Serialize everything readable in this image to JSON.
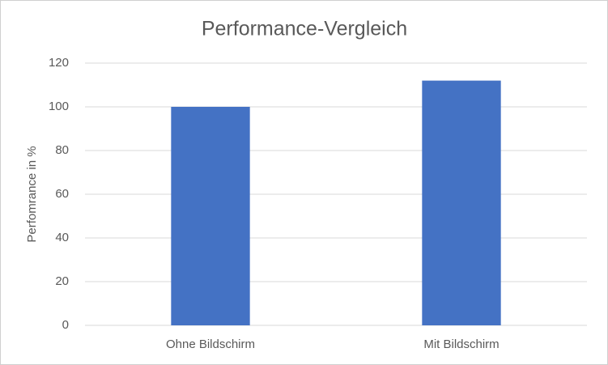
{
  "chart_data": {
    "type": "bar",
    "title": "Performance-Vergleich",
    "y_label": "Perfomrance in %",
    "categories": [
      "Ohne Bildschirm",
      "Mit Bildschirm"
    ],
    "values": [
      100,
      112
    ],
    "color": "#4472c4",
    "ylim": [
      0,
      120
    ],
    "yticks": [
      0,
      20,
      40,
      60,
      80,
      100,
      120
    ],
    "grid": true
  }
}
